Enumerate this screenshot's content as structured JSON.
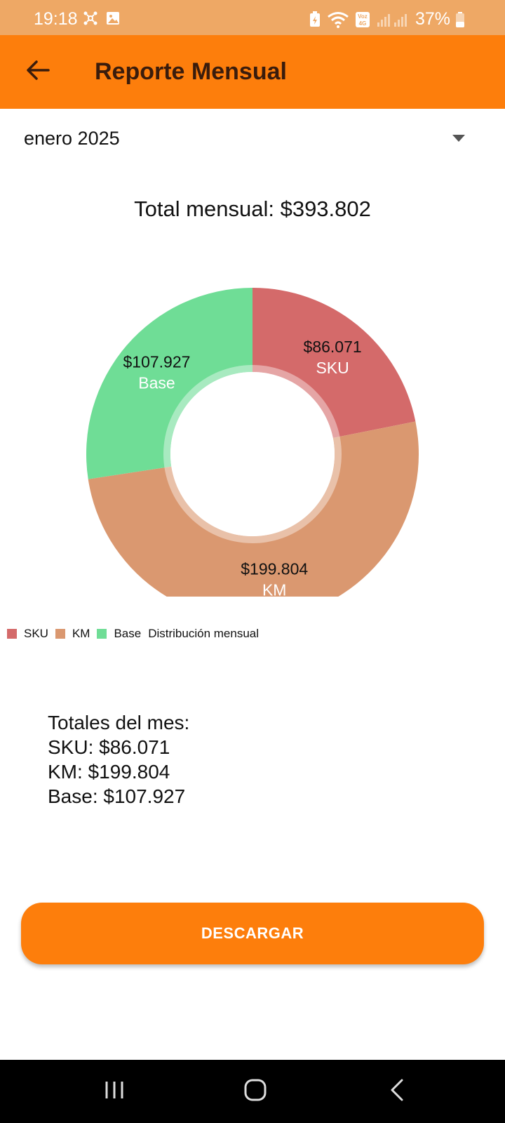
{
  "status_bar": {
    "time": "19:18",
    "battery": "37%",
    "icons": [
      "network-icon",
      "gallery-icon",
      "battery-saver-icon",
      "wifi-icon",
      "volte-icon",
      "signal-icon",
      "battery-icon"
    ]
  },
  "app_bar": {
    "title": "Reporte Mensual",
    "back_icon": "arrow-back-icon"
  },
  "month_selector": {
    "value": "enero 2025",
    "icon": "dropdown-caret-icon"
  },
  "total_label": "Total mensual: $393.802",
  "colors": {
    "accent": "#FD7E0C",
    "status_bar": "#EEA865",
    "sku": "#D46A6A",
    "km": "#DA9870",
    "base": "#6FDD96"
  },
  "chart_data": {
    "type": "pie",
    "donut": true,
    "title": "",
    "legend_position": "bottom-left",
    "legend_title": "Distribución mensual",
    "slices": [
      {
        "label": "SKU",
        "value": 86071,
        "value_label": "$86.071",
        "color": "#D46A6A"
      },
      {
        "label": "KM",
        "value": 199804,
        "value_label": "$199.804",
        "color": "#DA9870"
      },
      {
        "label": "Base",
        "value": 107927,
        "value_label": "$107.927",
        "color": "#6FDD96"
      }
    ]
  },
  "legend": {
    "items": [
      "SKU",
      "KM",
      "Base"
    ],
    "description": "Distribución mensual"
  },
  "totals": {
    "heading": "Totales del mes:",
    "lines": [
      "SKU: $86.071",
      "KM: $199.804",
      "Base: $107.927"
    ]
  },
  "download_button": {
    "label": "DESCARGAR"
  },
  "nav_bar": {
    "icons": [
      "recents-icon",
      "home-icon",
      "back-icon"
    ]
  }
}
